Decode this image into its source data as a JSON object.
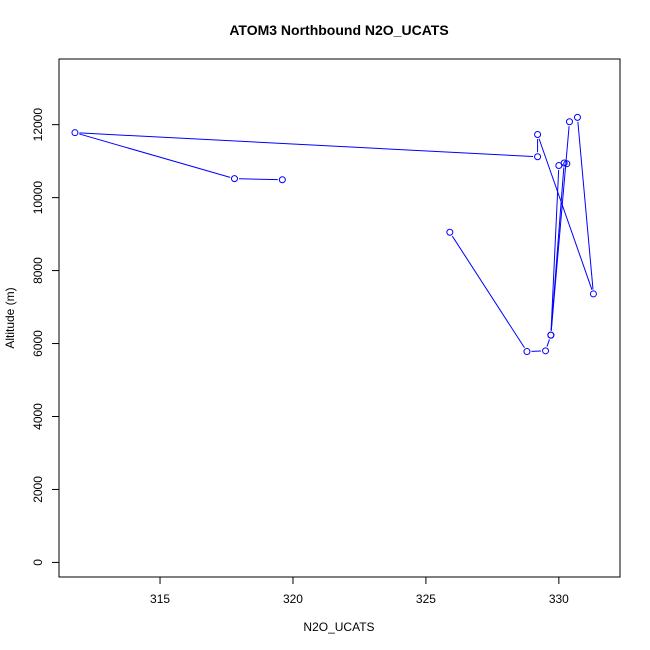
{
  "chart_data": {
    "type": "line",
    "title": "ATOM3 Northbound N2O_UCATS",
    "xlabel": "N2O_UCATS",
    "ylabel": "Altitude (m)",
    "xlim": [
      311.2,
      332.3
    ],
    "ylim": [
      -400,
      13800
    ],
    "x_ticks": [
      315,
      320,
      325,
      330
    ],
    "y_ticks": [
      0,
      2000,
      4000,
      6000,
      8000,
      10000,
      12000
    ],
    "grid": false,
    "series": [
      {
        "color": "#0000ff",
        "marker": "open-circle",
        "points": [
          {
            "x": 325.9,
            "y": 9050
          },
          {
            "x": 328.8,
            "y": 5780
          },
          {
            "x": 329.5,
            "y": 5800
          },
          {
            "x": 329.7,
            "y": 6230
          },
          {
            "x": 330.2,
            "y": 10950
          },
          {
            "x": 330.3,
            "y": 10930
          },
          {
            "x": 330.0,
            "y": 10880
          },
          {
            "x": 329.7,
            "y": 6230
          },
          {
            "x": 330.4,
            "y": 12080
          },
          {
            "x": 330.7,
            "y": 12200
          },
          {
            "x": 331.3,
            "y": 7360
          },
          {
            "x": 329.2,
            "y": 11730
          },
          {
            "x": 329.2,
            "y": 11120
          },
          {
            "x": 311.8,
            "y": 11780
          },
          {
            "x": 317.8,
            "y": 10520
          },
          {
            "x": 319.6,
            "y": 10490
          }
        ]
      }
    ]
  }
}
